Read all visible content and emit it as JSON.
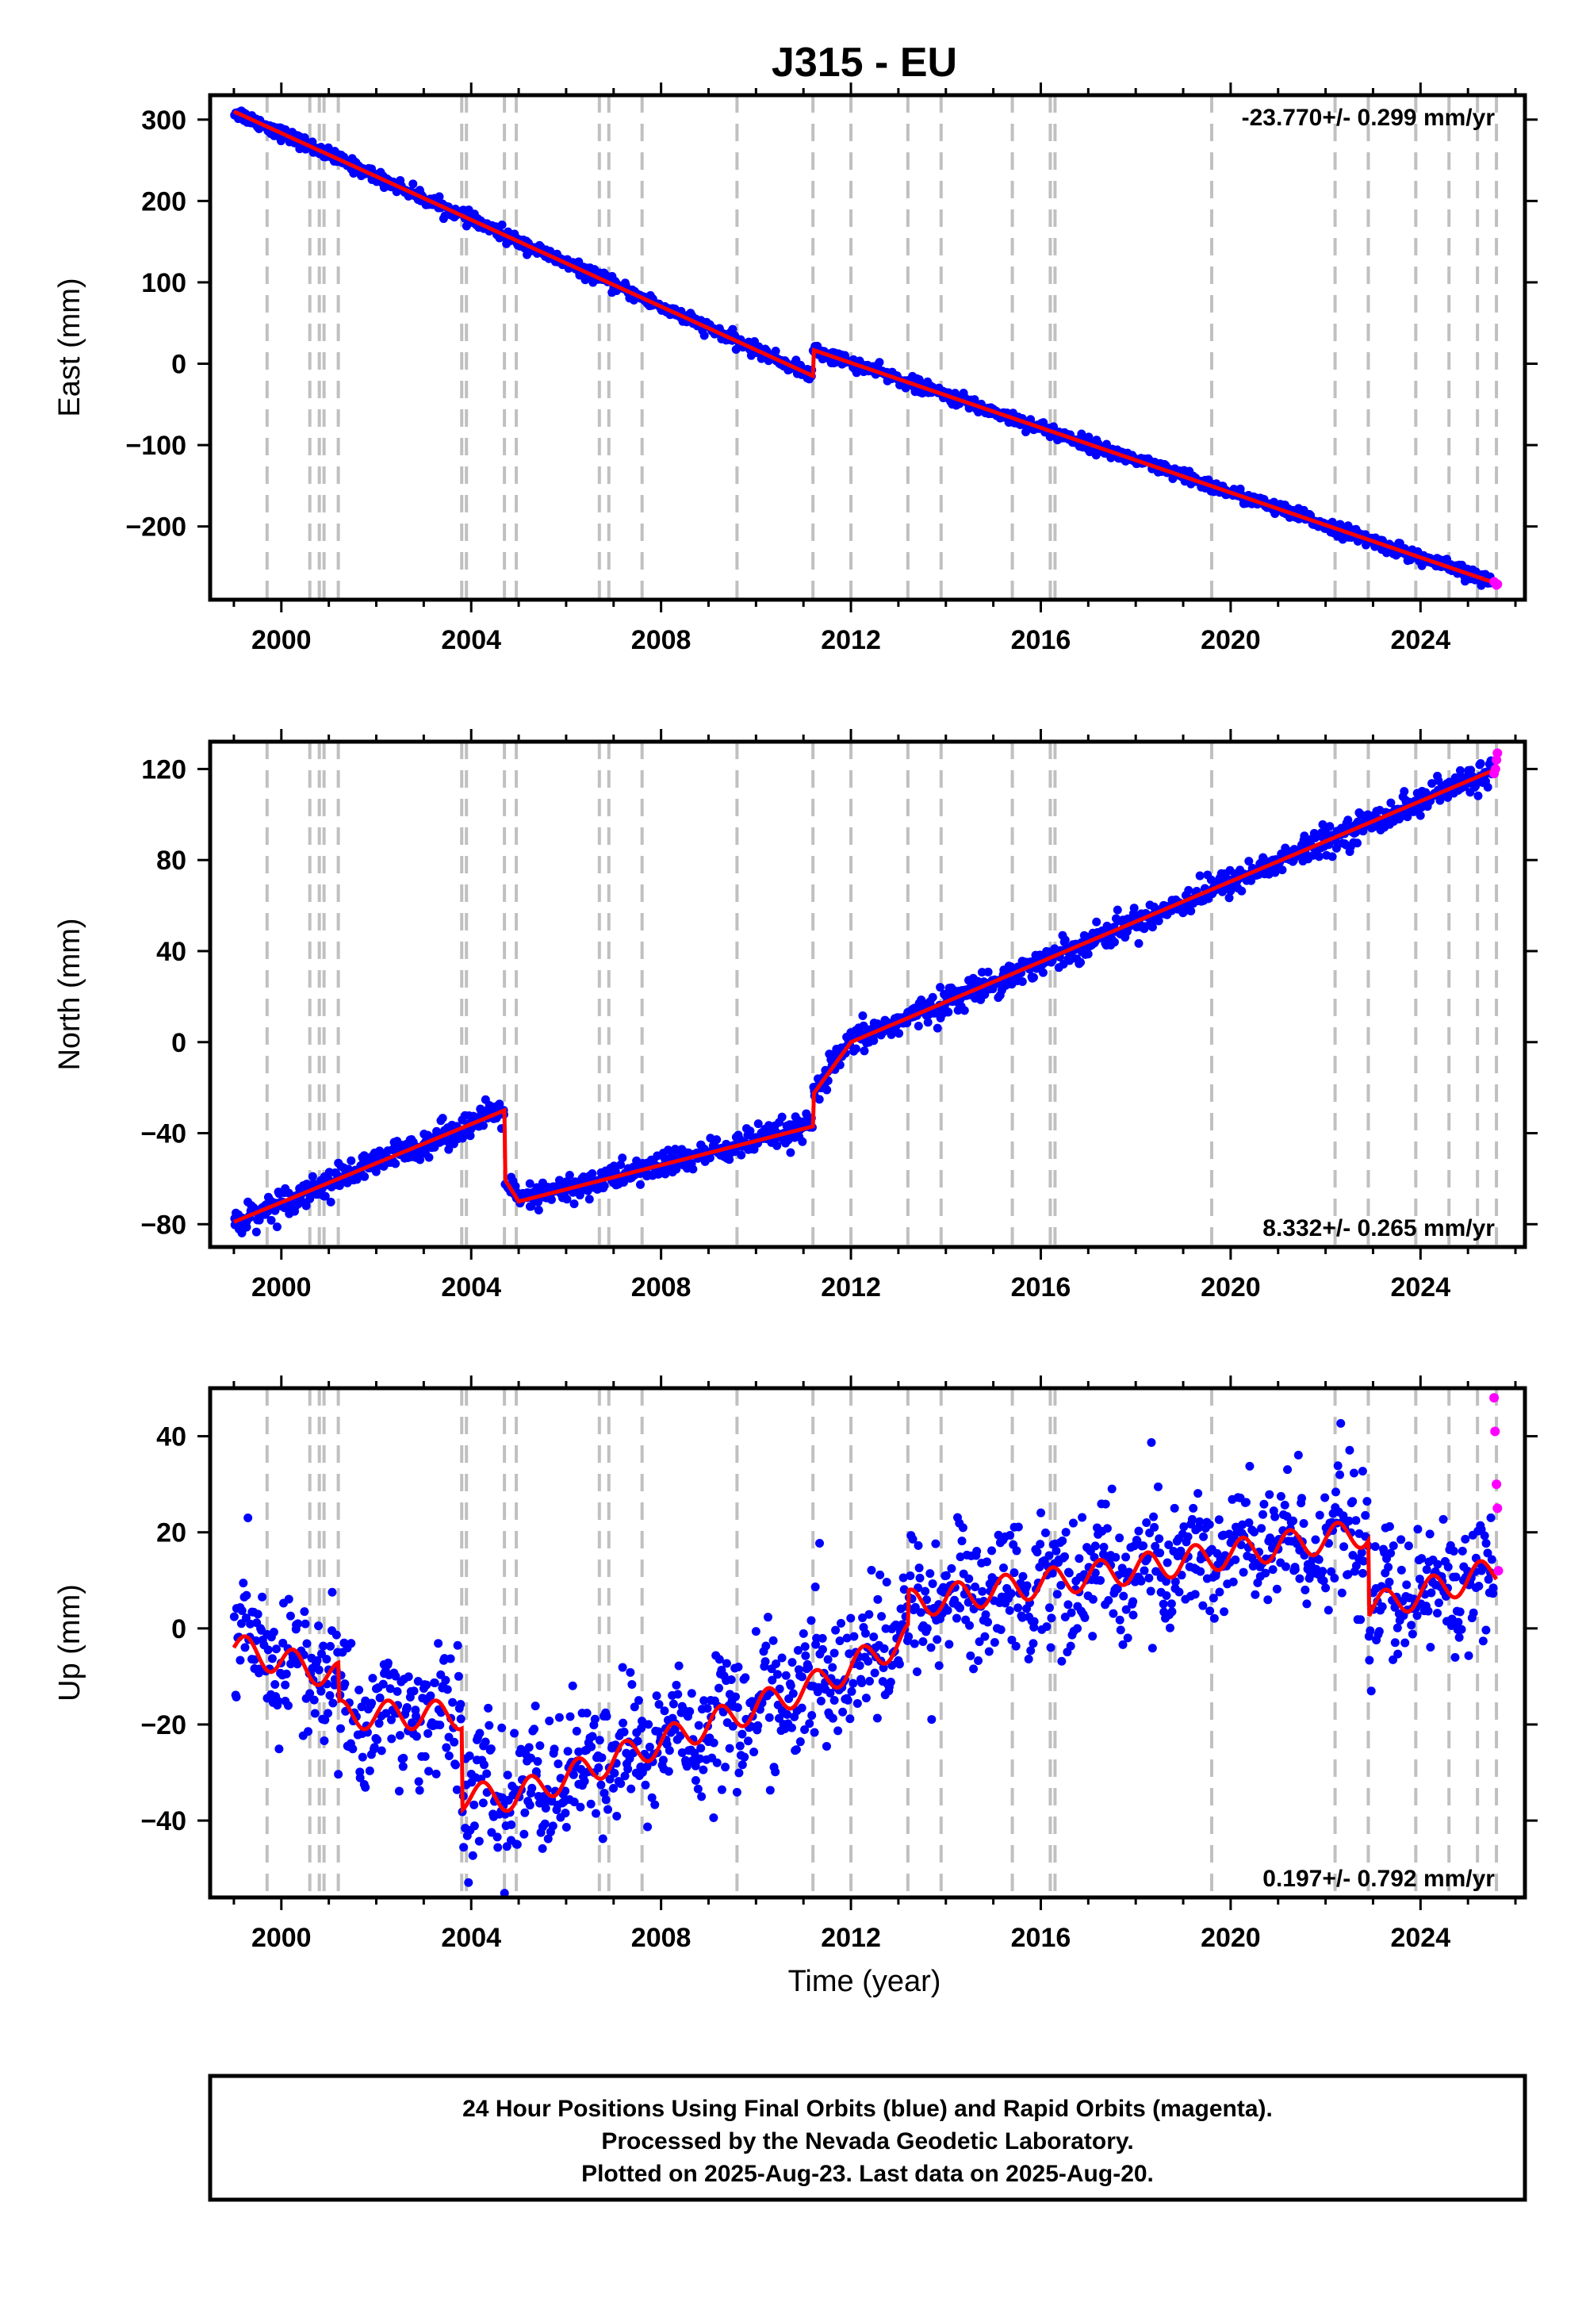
{
  "title": "J315 - EU",
  "x_axis_label": "Time (year)",
  "colors": {
    "final_orbits": "#0000ff",
    "rapid_orbits": "#ff00ff",
    "model": "#ff0000",
    "event_lines": "#c0c0c0"
  },
  "footer": {
    "line1": "24 Hour Positions Using Final Orbits (blue) and Rapid Orbits (magenta).",
    "line2": "Processed by the Nevada Geodetic Laboratory.",
    "line3": "Plotted on 2025-Aug-23. Last data on 2025-Aug-20."
  },
  "chart_data": [
    {
      "type": "scatter",
      "component": "east",
      "ylabel": "East (mm)",
      "rate_text": "-23.770+/- 0.299 mm/yr",
      "rate_position": "top-right",
      "xlim": [
        1998.5,
        2026.2
      ],
      "ylim": [
        -290,
        330
      ],
      "xticks": [
        2000,
        2004,
        2008,
        2012,
        2016,
        2020,
        2024
      ],
      "yticks": [
        -200,
        -100,
        0,
        100,
        200,
        300
      ],
      "event_lines": [
        1999.7,
        2000.6,
        2000.8,
        2000.9,
        2001.2,
        2003.8,
        2003.9,
        2004.7,
        2004.95,
        2006.7,
        2006.9,
        2007.6,
        2009.6,
        2011.2,
        2012.0,
        2013.2,
        2013.9,
        2015.4,
        2016.2,
        2016.3,
        2019.6,
        2022.2,
        2022.9,
        2023.9,
        2024.6,
        2025.2,
        2025.6
      ],
      "model_trend": {
        "x": [
          1999.0,
          2011.2,
          2011.2,
          2025.6
        ],
        "y": [
          310,
          -15,
          17,
          -270
        ]
      },
      "scatter_noise_mm": 4,
      "rapid_points": {
        "x": [
          2025.55,
          2025.58,
          2025.6,
          2025.62
        ],
        "y": [
          -268,
          -270,
          -272,
          -271
        ]
      }
    },
    {
      "type": "scatter",
      "component": "north",
      "ylabel": "North (mm)",
      "rate_text": "8.332+/- 0.265 mm/yr",
      "rate_position": "bottom-right",
      "xlim": [
        1998.5,
        2026.2
      ],
      "ylim": [
        -90,
        132
      ],
      "xticks": [
        2000,
        2004,
        2008,
        2012,
        2016,
        2020,
        2024
      ],
      "yticks": [
        -80,
        -40,
        0,
        40,
        80,
        120
      ],
      "event_lines": [
        1999.7,
        2000.6,
        2000.8,
        2000.9,
        2001.2,
        2003.8,
        2003.9,
        2004.7,
        2004.95,
        2006.7,
        2006.9,
        2007.6,
        2009.6,
        2011.2,
        2012.0,
        2013.2,
        2013.9,
        2015.4,
        2016.2,
        2016.3,
        2019.6,
        2022.2,
        2022.9,
        2023.9,
        2024.6,
        2025.2,
        2025.6
      ],
      "model_trend": {
        "x": [
          1999.0,
          2004.7,
          2004.7,
          2005.0,
          2011.2,
          2011.2,
          2012.0,
          2025.6
        ],
        "y": [
          -79,
          -30,
          -60,
          -70,
          -37,
          -23,
          0,
          120
        ]
      },
      "scatter_noise_mm": 3,
      "rapid_points": {
        "x": [
          2025.55,
          2025.58,
          2025.6,
          2025.62
        ],
        "y": [
          118,
          120,
          124,
          127
        ]
      }
    },
    {
      "type": "scatter",
      "component": "up",
      "ylabel": "Up (mm)",
      "rate_text": "0.197+/- 0.792 mm/yr",
      "rate_position": "bottom-right",
      "xlim": [
        1998.5,
        2026.2
      ],
      "ylim": [
        -56,
        50
      ],
      "xticks": [
        2000,
        2004,
        2008,
        2012,
        2016,
        2020,
        2024
      ],
      "yticks": [
        -40,
        -20,
        0,
        20,
        40
      ],
      "event_lines": [
        1999.7,
        2000.6,
        2000.8,
        2000.9,
        2001.2,
        2003.8,
        2003.9,
        2004.7,
        2004.95,
        2006.7,
        2006.9,
        2007.6,
        2009.6,
        2011.2,
        2012.0,
        2013.2,
        2013.9,
        2015.4,
        2016.2,
        2016.3,
        2019.6,
        2022.2,
        2022.9,
        2023.9,
        2024.6,
        2025.2,
        2025.6
      ],
      "model_trend": {
        "x": [
          1999.0,
          2001.2,
          2001.2,
          2003.8,
          2003.8,
          2004.9,
          2011.2,
          2013.2,
          2013.2,
          2022.9,
          2022.9,
          2025.6
        ],
        "y": [
          -4,
          -10,
          -18,
          -18,
          -35,
          -35,
          -12,
          -2,
          5,
          20,
          4,
          12
        ]
      },
      "seasonal_amplitude_mm": 3,
      "scatter_noise_mm": 7,
      "rapid_points": {
        "x": [
          2025.55,
          2025.57,
          2025.6,
          2025.62,
          2025.64
        ],
        "y": [
          48,
          41,
          30,
          25,
          12
        ]
      }
    }
  ]
}
